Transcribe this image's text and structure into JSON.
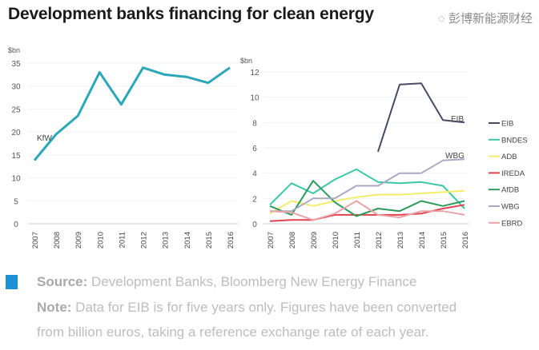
{
  "title": "Development banks financing for clean energy",
  "chart_data": [
    {
      "type": "line",
      "ylabel": "$bn",
      "ylim": [
        0,
        35
      ],
      "yticks": [
        0,
        5,
        10,
        15,
        20,
        25,
        30,
        35
      ],
      "x": [
        "2007",
        "2008",
        "2009",
        "2010",
        "2011",
        "2012",
        "2013",
        "2014",
        "2015",
        "2016"
      ],
      "grid": true,
      "series": [
        {
          "name": "KfW",
          "color": "#2aa7b8",
          "values": [
            13.8,
            19.5,
            23.5,
            33.0,
            26.0,
            34.0,
            32.5,
            32.0,
            30.7,
            34.0
          ]
        }
      ]
    },
    {
      "type": "line",
      "ylabel": "$bn",
      "ylim": [
        0,
        12
      ],
      "yticks": [
        0,
        2,
        4,
        6,
        8,
        10,
        12
      ],
      "x": [
        "2007",
        "2008",
        "2009",
        "2010",
        "2011",
        "2012",
        "2013",
        "2014",
        "2015",
        "2016"
      ],
      "grid": true,
      "legend": "right",
      "annotations": [
        "EIB",
        "WBG"
      ],
      "series": [
        {
          "name": "EIB",
          "color": "#4a4a66",
          "values": [
            null,
            null,
            null,
            null,
            null,
            5.7,
            11.0,
            11.1,
            8.2,
            8.0
          ]
        },
        {
          "name": "BNDES",
          "color": "#3cc7a8",
          "values": [
            1.5,
            3.2,
            2.4,
            3.5,
            4.3,
            3.3,
            3.2,
            3.3,
            3.0,
            1.2
          ]
        },
        {
          "name": "ADB",
          "color": "#f2ee6a",
          "values": [
            0.8,
            1.8,
            1.4,
            1.8,
            2.1,
            2.3,
            2.3,
            2.4,
            2.5,
            2.6
          ]
        },
        {
          "name": "IREDA",
          "color": "#e0434d",
          "values": [
            0.2,
            0.3,
            0.3,
            0.7,
            0.7,
            0.7,
            0.7,
            0.8,
            1.2,
            1.5
          ]
        },
        {
          "name": "AfDB",
          "color": "#2e9a5c",
          "values": [
            1.4,
            0.7,
            3.4,
            1.7,
            0.6,
            1.2,
            1.0,
            1.8,
            1.4,
            1.8
          ]
        },
        {
          "name": "WBG",
          "color": "#a9a9c6",
          "values": [
            1.0,
            1.0,
            2.0,
            2.0,
            3.0,
            3.0,
            4.0,
            4.0,
            5.0,
            5.1
          ]
        },
        {
          "name": "EBRD",
          "color": "#eaa3a8",
          "values": [
            1.0,
            0.9,
            0.3,
            0.8,
            1.8,
            0.7,
            0.5,
            1.0,
            1.0,
            0.7
          ]
        }
      ]
    }
  ],
  "footer": {
    "source_label": "Source:",
    "source_text": " Development Banks, Bloomberg New Energy Finance",
    "note_label": "Note:",
    "note_text_1": " Data for EIB is for five years only. Figures have been converted",
    "note_text_2": "from billion euros, taking a reference exchange rate of each year.",
    "accent_color": "#1e90d6"
  },
  "watermark": "彭博新能源财经"
}
